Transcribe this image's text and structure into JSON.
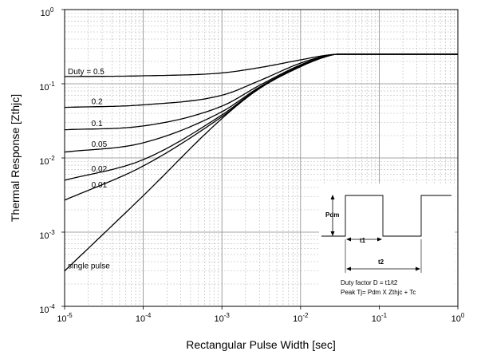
{
  "chart_data": {
    "type": "line",
    "title": "",
    "xlabel": "Rectangular Pulse Width [sec]",
    "ylabel": "Thermal Response [Zthjc]",
    "xscale": "log",
    "yscale": "log",
    "xlim": [
      1e-05,
      1
    ],
    "ylim": [
      0.0001,
      1
    ],
    "grid": true,
    "x_ticks": [
      {
        "base": "10",
        "exp": "-5"
      },
      {
        "base": "10",
        "exp": "-4"
      },
      {
        "base": "10",
        "exp": "-3"
      },
      {
        "base": "10",
        "exp": "-2"
      },
      {
        "base": "10",
        "exp": "-1"
      },
      {
        "base": "10",
        "exp": "0"
      }
    ],
    "y_ticks": [
      {
        "base": "10",
        "exp": "-4"
      },
      {
        "base": "10",
        "exp": "-3"
      },
      {
        "base": "10",
        "exp": "-2"
      },
      {
        "base": "10",
        "exp": "-1"
      },
      {
        "base": "10",
        "exp": "0"
      }
    ],
    "series": [
      {
        "name": "Duty = 0.5",
        "label": "Duty = 0.5",
        "label_at": 1e-05,
        "x": [
          1e-05,
          0.0001,
          0.001,
          0.003,
          0.01,
          0.02,
          0.03,
          1
        ],
        "values": [
          0.125,
          0.128,
          0.14,
          0.165,
          0.21,
          0.24,
          0.25,
          0.25
        ]
      },
      {
        "name": "0.2",
        "label": "0.2",
        "label_at": 2e-05,
        "x": [
          1e-05,
          0.0001,
          0.001,
          0.003,
          0.01,
          0.02,
          0.03,
          1
        ],
        "values": [
          0.048,
          0.052,
          0.07,
          0.11,
          0.19,
          0.235,
          0.25,
          0.25
        ]
      },
      {
        "name": "0.1",
        "label": "0.1",
        "label_at": 2e-05,
        "x": [
          1e-05,
          0.0001,
          0.001,
          0.003,
          0.01,
          0.02,
          0.03,
          1
        ],
        "values": [
          0.024,
          0.027,
          0.05,
          0.095,
          0.18,
          0.232,
          0.25,
          0.25
        ]
      },
      {
        "name": "0.05",
        "label": "0.05",
        "label_at": 2e-05,
        "x": [
          1e-05,
          0.0001,
          0.001,
          0.003,
          0.01,
          0.02,
          0.03,
          1
        ],
        "values": [
          0.012,
          0.016,
          0.042,
          0.09,
          0.175,
          0.23,
          0.25,
          0.25
        ]
      },
      {
        "name": "0.02",
        "label": "0.02",
        "label_at": 2e-05,
        "x": [
          1e-05,
          0.0001,
          0.001,
          0.003,
          0.01,
          0.02,
          0.03,
          1
        ],
        "values": [
          0.005,
          0.0095,
          0.038,
          0.088,
          0.172,
          0.23,
          0.25,
          0.25
        ]
      },
      {
        "name": "0.01",
        "label": "0.01",
        "label_at": 2e-05,
        "x": [
          1e-05,
          0.0001,
          0.001,
          0.003,
          0.01,
          0.02,
          0.03,
          1
        ],
        "values": [
          0.0027,
          0.0078,
          0.036,
          0.087,
          0.171,
          0.229,
          0.25,
          0.25
        ]
      },
      {
        "name": "single pulse",
        "label": "single pulse",
        "label_at": 1e-05,
        "x": [
          1e-05,
          0.0001,
          0.001,
          0.003,
          0.01,
          0.02,
          0.03,
          1
        ],
        "values": [
          0.0003,
          0.0031,
          0.034,
          0.086,
          0.17,
          0.228,
          0.25,
          0.25
        ]
      }
    ],
    "inset": {
      "pdm_label": "Pdm",
      "t1_label": "t1",
      "t2_label": "t2",
      "note_1": "Duty factor D = t1/t2",
      "note_2": "Peak Tj= Pdm X Zthjc + Tc"
    }
  }
}
